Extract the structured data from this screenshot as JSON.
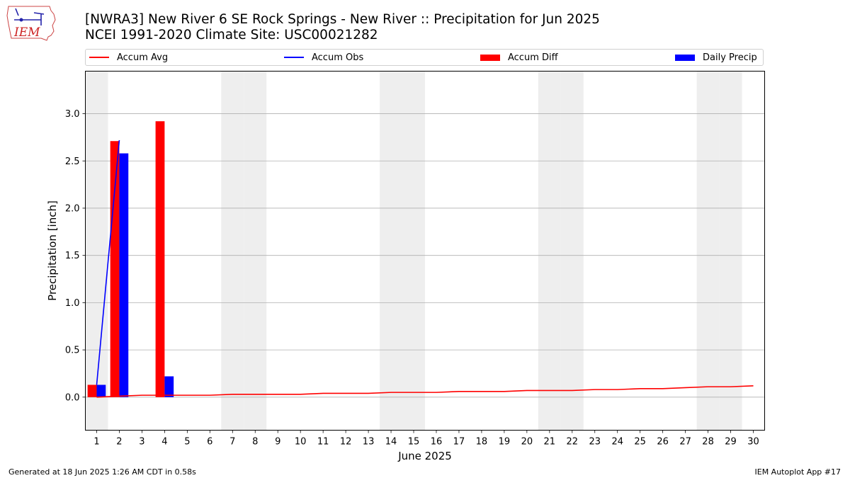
{
  "header": {
    "title_line1": "[NWRA3] New River 6 SE Rock Springs - New River :: Precipitation for Jun 2025",
    "title_line2": "NCEI 1991-2020 Climate Site: USC00021282"
  },
  "logo": {
    "text": "IEM",
    "icon": "iem-iowa-logo"
  },
  "footer": {
    "left": "Generated at 18 Jun 2025 1:26 AM CDT in 0.58s",
    "right": "IEM Autoplot App #17"
  },
  "colors": {
    "avg": "#ff0000",
    "obs": "#0000ff",
    "diff": "#ff0000",
    "daily": "#0000ff",
    "weekend": "#eeeeee",
    "grid": "#b0b0b0"
  },
  "chart_data": {
    "type": "bar",
    "title": "[NWRA3] New River 6 SE Rock Springs - New River :: Precipitation for Jun 2025",
    "xlabel": "June 2025",
    "ylabel": "Precipitation [inch]",
    "x": [
      1,
      2,
      3,
      4,
      5,
      6,
      7,
      8,
      9,
      10,
      11,
      12,
      13,
      14,
      15,
      16,
      17,
      18,
      19,
      20,
      21,
      22,
      23,
      24,
      25,
      26,
      27,
      28,
      29,
      30
    ],
    "xlim": [
      0.5,
      30.5
    ],
    "ylim": [
      -0.35,
      3.45
    ],
    "yticks": [
      "0.0",
      "0.5",
      "1.0",
      "1.5",
      "2.0",
      "2.5",
      "3.0"
    ],
    "grid": "y",
    "legend_position": "top",
    "weekend_days": [
      1,
      7,
      8,
      14,
      15,
      21,
      22,
      28,
      29
    ],
    "series": [
      {
        "name": "Accum Avg",
        "kind": "line",
        "x": [
          1,
          2,
          3,
          4,
          5,
          6,
          7,
          8,
          9,
          10,
          11,
          12,
          13,
          14,
          15,
          16,
          17,
          18,
          19,
          20,
          21,
          22,
          23,
          24,
          25,
          26,
          27,
          28,
          29,
          30
        ],
        "values": [
          0.0,
          0.01,
          0.02,
          0.02,
          0.02,
          0.02,
          0.03,
          0.03,
          0.03,
          0.03,
          0.04,
          0.04,
          0.04,
          0.05,
          0.05,
          0.05,
          0.06,
          0.06,
          0.06,
          0.07,
          0.07,
          0.07,
          0.08,
          0.08,
          0.09,
          0.09,
          0.1,
          0.11,
          0.11,
          0.12
        ]
      },
      {
        "name": "Accum Obs",
        "kind": "line",
        "x": [
          1,
          2
        ],
        "values": [
          0.13,
          2.72
        ]
      },
      {
        "name": "Accum Diff",
        "kind": "bar",
        "x": [
          1,
          2,
          4
        ],
        "values": [
          0.13,
          2.71,
          2.92
        ]
      },
      {
        "name": "Daily Precip",
        "kind": "bar",
        "x": [
          1,
          2,
          4
        ],
        "values": [
          0.13,
          2.58,
          0.22
        ]
      }
    ]
  }
}
